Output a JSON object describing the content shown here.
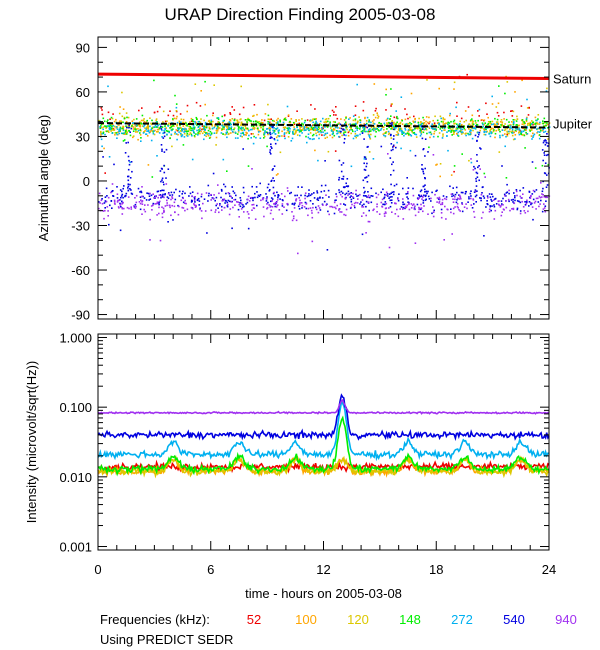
{
  "chart_data": [
    {
      "type": "scatter",
      "title": "URAP Direction Finding  2005-03-08",
      "ylabel": "Azimuthal angle (deg)",
      "xlim": [
        0,
        24
      ],
      "ylim": [
        -93,
        97
      ],
      "xticks": [
        0,
        6,
        12,
        18,
        24
      ],
      "yticks": [
        90,
        60,
        30,
        0,
        -30,
        -60,
        -90
      ],
      "annotations": [
        "Saturn",
        "Jupiter"
      ],
      "reference_lines": [
        {
          "name": "Saturn",
          "color": "#ee0000",
          "x": [
            0,
            24
          ],
          "y": [
            72,
            69
          ]
        },
        {
          "name": "Jupiter",
          "color": "#000000",
          "x": [
            0,
            24
          ],
          "y": [
            39,
            36
          ]
        }
      ],
      "series": [
        {
          "name": "52 kHz",
          "color": "#ee0000",
          "band_center": 40,
          "band_spread": 6
        },
        {
          "name": "100 kHz",
          "color": "#ffa500",
          "band_center": 37,
          "band_spread": 5
        },
        {
          "name": "120 kHz",
          "color": "#dcc800",
          "band_center": 37,
          "band_spread": 5
        },
        {
          "name": "148 kHz",
          "color": "#00ee00",
          "band_center": 37,
          "band_spread": 5
        },
        {
          "name": "272 kHz",
          "color": "#00b0f0",
          "band_center": 35,
          "band_spread": 5
        },
        {
          "name": "540 kHz",
          "color": "#0000e0",
          "band_center": -11,
          "band_spread": 6
        },
        {
          "name": "940 kHz",
          "color": "#a030f0",
          "band_center": -15,
          "band_spread": 7
        }
      ]
    },
    {
      "type": "line",
      "ylabel": "Intensity (microvolt/sqrt(Hz))",
      "xlabel": "time - hours on 2005-03-08",
      "xlim": [
        0,
        24
      ],
      "ylim_log10": [
        -3.05,
        0.05
      ],
      "xticks": [
        0,
        6,
        12,
        18,
        24
      ],
      "ytick_labels": [
        "1.000",
        "0.100",
        "0.010",
        "0.001"
      ],
      "ytick_values": [
        1,
        0.1,
        0.01,
        0.001
      ],
      "series": [
        {
          "name": "52 kHz",
          "color": "#ee0000",
          "baseline": 0.014
        },
        {
          "name": "100 kHz",
          "color": "#ffa500",
          "baseline": 0.012
        },
        {
          "name": "120 kHz",
          "color": "#dcc800",
          "baseline": 0.012
        },
        {
          "name": "148 kHz",
          "color": "#00ee00",
          "baseline": 0.013
        },
        {
          "name": "272 kHz",
          "color": "#00b0f0",
          "baseline": 0.021
        },
        {
          "name": "540 kHz",
          "color": "#0000e0",
          "baseline": 0.04
        },
        {
          "name": "940 kHz",
          "color": "#a030f0",
          "baseline": 0.083
        }
      ]
    }
  ],
  "legend": {
    "label": "Frequencies (kHz):",
    "items": [
      {
        "value": "52",
        "color": "#ee0000"
      },
      {
        "value": "100",
        "color": "#ffa500"
      },
      {
        "value": "120",
        "color": "#dcc800"
      },
      {
        "value": "148",
        "color": "#00ee00"
      },
      {
        "value": "272",
        "color": "#00b0f0"
      },
      {
        "value": "540",
        "color": "#0000e0"
      },
      {
        "value": "940",
        "color": "#a030f0"
      }
    ]
  },
  "note": "Using PREDICT SEDR"
}
